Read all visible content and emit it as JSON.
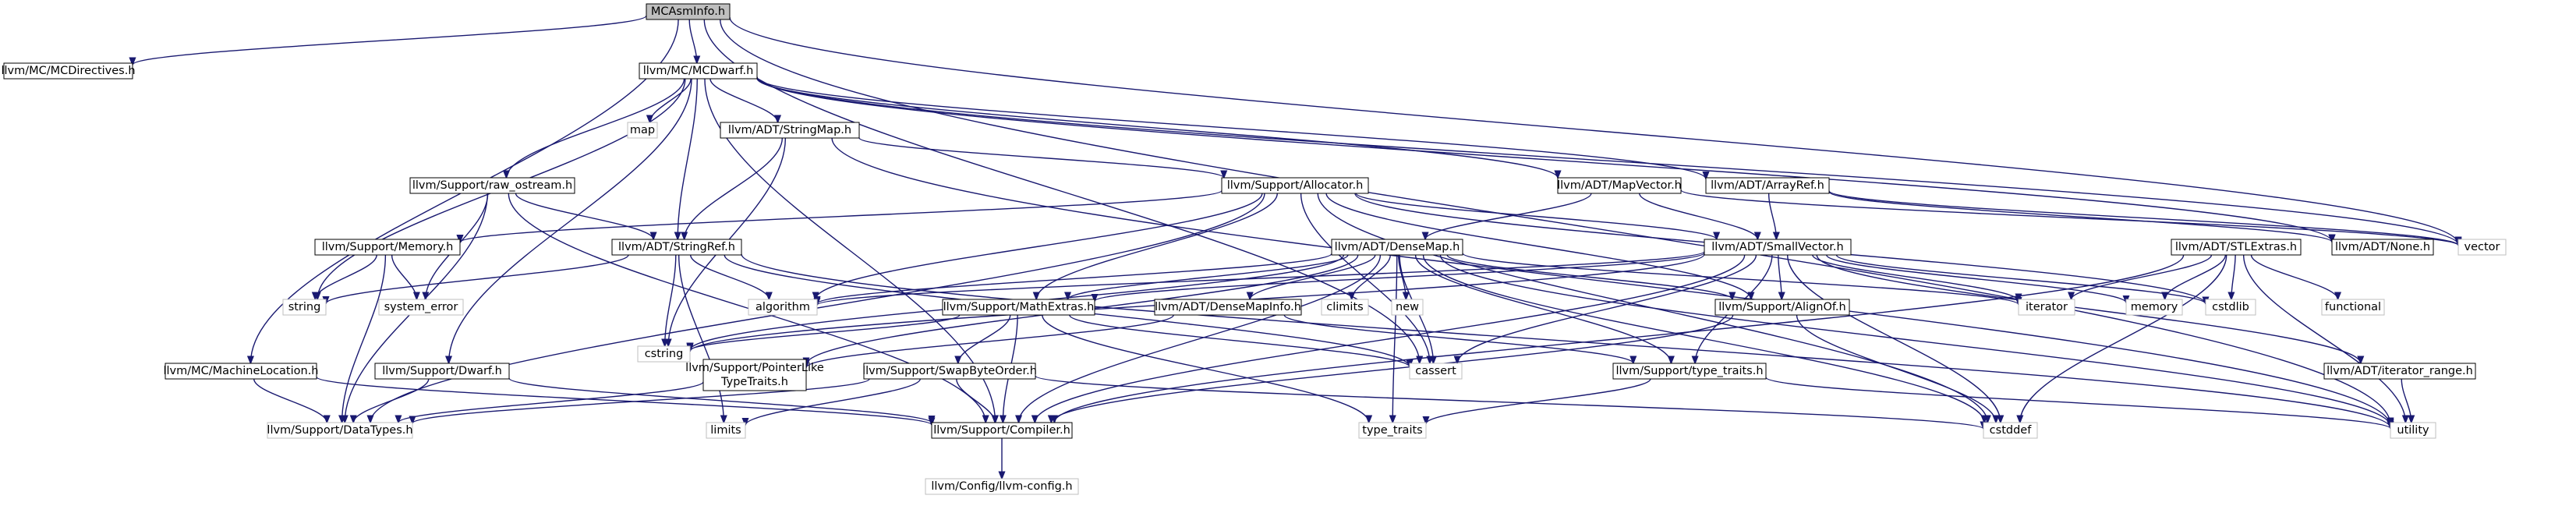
{
  "colors": {
    "edge": "#191970",
    "node_border": "#000000",
    "sys_border": "#bfbfbf",
    "root_fill": "#bfbfbf",
    "node_fill": "#ffffff",
    "text": "#000000"
  },
  "nodes": [
    {
      "id": "mcasminfo",
      "label": "MCAsmInfo.h",
      "kind": "root"
    },
    {
      "id": "mcdirectives",
      "label": "llvm/MC/MCDirectives.h",
      "kind": "normal"
    },
    {
      "id": "mcdwarf",
      "label": "llvm/MC/MCDwarf.h",
      "kind": "normal"
    },
    {
      "id": "map",
      "label": "map",
      "kind": "system"
    },
    {
      "id": "stringmap",
      "label": "llvm/ADT/StringMap.h",
      "kind": "normal"
    },
    {
      "id": "rawostream",
      "label": "llvm/Support/raw_ostream.h",
      "kind": "normal"
    },
    {
      "id": "allocator",
      "label": "llvm/Support/Allocator.h",
      "kind": "normal"
    },
    {
      "id": "mapvector",
      "label": "llvm/ADT/MapVector.h",
      "kind": "normal"
    },
    {
      "id": "arrayref",
      "label": "llvm/ADT/ArrayRef.h",
      "kind": "normal"
    },
    {
      "id": "memory",
      "label": "llvm/Support/Memory.h",
      "kind": "normal"
    },
    {
      "id": "stringref",
      "label": "llvm/ADT/StringRef.h",
      "kind": "normal"
    },
    {
      "id": "densemap",
      "label": "llvm/ADT/DenseMap.h",
      "kind": "normal"
    },
    {
      "id": "smallvector",
      "label": "llvm/ADT/SmallVector.h",
      "kind": "normal"
    },
    {
      "id": "stlextras",
      "label": "llvm/ADT/STLExtras.h",
      "kind": "normal"
    },
    {
      "id": "none",
      "label": "llvm/ADT/None.h",
      "kind": "normal"
    },
    {
      "id": "vector",
      "label": "vector",
      "kind": "system"
    },
    {
      "id": "string",
      "label": "string",
      "kind": "system"
    },
    {
      "id": "systemerror",
      "label": "system_error",
      "kind": "system"
    },
    {
      "id": "algorithm",
      "label": "algorithm",
      "kind": "system"
    },
    {
      "id": "cstring",
      "label": "cstring",
      "kind": "system"
    },
    {
      "id": "mathextras",
      "label": "llvm/Support/MathExtras.h",
      "kind": "normal"
    },
    {
      "id": "densemapinfo",
      "label": "llvm/ADT/DenseMapInfo.h",
      "kind": "normal"
    },
    {
      "id": "climits",
      "label": "climits",
      "kind": "system"
    },
    {
      "id": "new",
      "label": "new",
      "kind": "system"
    },
    {
      "id": "alignof",
      "label": "llvm/Support/AlignOf.h",
      "kind": "normal"
    },
    {
      "id": "iterator",
      "label": "iterator",
      "kind": "system"
    },
    {
      "id": "memorystd",
      "label": "memory",
      "kind": "system"
    },
    {
      "id": "cstdlib",
      "label": "cstdlib",
      "kind": "system"
    },
    {
      "id": "functional",
      "label": "functional",
      "kind": "system"
    },
    {
      "id": "machineloc",
      "label": "llvm/MC/MachineLocation.h",
      "kind": "normal"
    },
    {
      "id": "dwarf",
      "label": "llvm/Support/Dwarf.h",
      "kind": "normal"
    },
    {
      "id": "pointerlike",
      "label": "llvm/Support/PointerLike\nTypeTraits.h",
      "kind": "normal"
    },
    {
      "id": "swapbyteorder",
      "label": "llvm/Support/SwapByteOrder.h",
      "kind": "normal"
    },
    {
      "id": "cassert",
      "label": "cassert",
      "kind": "system"
    },
    {
      "id": "typetraitsh",
      "label": "llvm/Support/type_traits.h",
      "kind": "normal"
    },
    {
      "id": "iteratorrange",
      "label": "llvm/ADT/iterator_range.h",
      "kind": "normal"
    },
    {
      "id": "datatypes",
      "label": "llvm/Support/DataTypes.h",
      "kind": "system"
    },
    {
      "id": "limits",
      "label": "limits",
      "kind": "system"
    },
    {
      "id": "compiler",
      "label": "llvm/Support/Compiler.h",
      "kind": "normal"
    },
    {
      "id": "typetraits",
      "label": "type_traits",
      "kind": "system"
    },
    {
      "id": "cstddef",
      "label": "cstddef",
      "kind": "system"
    },
    {
      "id": "utility",
      "label": "utility",
      "kind": "system"
    },
    {
      "id": "llvmconfig",
      "label": "llvm/Config/llvm-config.h",
      "kind": "system"
    }
  ],
  "edges": [
    [
      "mcasminfo",
      "mcdirectives"
    ],
    [
      "mcasminfo",
      "mcdwarf"
    ],
    [
      "mcasminfo",
      "machineloc"
    ],
    [
      "mcasminfo",
      "cassert"
    ],
    [
      "mcasminfo",
      "vector"
    ],
    [
      "mcasminfo",
      "utility"
    ],
    [
      "mcdwarf",
      "map"
    ],
    [
      "mcdwarf",
      "stringmap"
    ],
    [
      "mcdwarf",
      "rawostream"
    ],
    [
      "mcdwarf",
      "stringref"
    ],
    [
      "mcdwarf",
      "mapvector"
    ],
    [
      "mcdwarf",
      "arrayref"
    ],
    [
      "mcdwarf",
      "none"
    ],
    [
      "mcdwarf",
      "vector"
    ],
    [
      "mcdwarf",
      "string"
    ],
    [
      "mcdwarf",
      "dwarf"
    ],
    [
      "mcdwarf",
      "compiler"
    ],
    [
      "stringmap",
      "allocator"
    ],
    [
      "stringmap",
      "stringref"
    ],
    [
      "stringmap",
      "cstring"
    ],
    [
      "stringmap",
      "utility"
    ],
    [
      "rawostream",
      "stringref"
    ],
    [
      "rawostream",
      "compiler"
    ],
    [
      "rawostream",
      "datatypes"
    ],
    [
      "rawostream",
      "systemerror"
    ],
    [
      "allocator",
      "memory"
    ],
    [
      "allocator",
      "smallvector"
    ],
    [
      "allocator",
      "alignof"
    ],
    [
      "allocator",
      "mathextras"
    ],
    [
      "allocator",
      "datatypes"
    ],
    [
      "allocator",
      "algorithm"
    ],
    [
      "allocator",
      "cassert"
    ],
    [
      "allocator",
      "cstddef"
    ],
    [
      "allocator",
      "cstdlib"
    ],
    [
      "mapvector",
      "densemap"
    ],
    [
      "mapvector",
      "smallvector"
    ],
    [
      "mapvector",
      "vector"
    ],
    [
      "arrayref",
      "none"
    ],
    [
      "arrayref",
      "smallvector"
    ],
    [
      "arrayref",
      "vector"
    ],
    [
      "memory",
      "datatypes"
    ],
    [
      "memory",
      "string"
    ],
    [
      "memory",
      "systemerror"
    ],
    [
      "stringref",
      "algorithm"
    ],
    [
      "stringref",
      "cstring"
    ],
    [
      "stringref",
      "string"
    ],
    [
      "stringref",
      "utility"
    ],
    [
      "stringref",
      "limits"
    ],
    [
      "stringref",
      "cassert"
    ],
    [
      "densemap",
      "densemapinfo"
    ],
    [
      "densemap",
      "alignof"
    ],
    [
      "densemap",
      "compiler"
    ],
    [
      "densemap",
      "mathextras"
    ],
    [
      "densemap",
      "pointerlike"
    ],
    [
      "densemap",
      "typetraitsh"
    ],
    [
      "densemap",
      "algorithm"
    ],
    [
      "densemap",
      "cassert"
    ],
    [
      "densemap",
      "climits"
    ],
    [
      "densemap",
      "cstddef"
    ],
    [
      "densemap",
      "cstring"
    ],
    [
      "densemap",
      "iterator"
    ],
    [
      "densemap",
      "new"
    ],
    [
      "densemap",
      "utility"
    ],
    [
      "densemap",
      "typetraits"
    ],
    [
      "smallvector",
      "iteratorrange"
    ],
    [
      "smallvector",
      "alignof"
    ],
    [
      "smallvector",
      "compiler"
    ],
    [
      "smallvector",
      "mathextras"
    ],
    [
      "smallvector",
      "typetraitsh"
    ],
    [
      "smallvector",
      "algorithm"
    ],
    [
      "smallvector",
      "cassert"
    ],
    [
      "smallvector",
      "cstddef"
    ],
    [
      "smallvector",
      "cstdlib"
    ],
    [
      "smallvector",
      "cstring"
    ],
    [
      "smallvector",
      "iterator"
    ],
    [
      "smallvector",
      "memorystd"
    ],
    [
      "stlextras",
      "compiler"
    ],
    [
      "stlextras",
      "cstddef"
    ],
    [
      "stlextras",
      "cstdlib"
    ],
    [
      "stlextras",
      "functional"
    ],
    [
      "stlextras",
      "iterator"
    ],
    [
      "stlextras",
      "memorystd"
    ],
    [
      "stlextras",
      "utility"
    ],
    [
      "mathextras",
      "compiler"
    ],
    [
      "mathextras",
      "swapbyteorder"
    ],
    [
      "mathextras",
      "cassert"
    ],
    [
      "mathextras",
      "cstring"
    ],
    [
      "mathextras",
      "typetraits"
    ],
    [
      "densemapinfo",
      "pointerlike"
    ],
    [
      "densemapinfo",
      "typetraitsh"
    ],
    [
      "alignof",
      "compiler"
    ],
    [
      "alignof",
      "cstddef"
    ],
    [
      "iteratorrange",
      "utility"
    ],
    [
      "machineloc",
      "datatypes"
    ],
    [
      "machineloc",
      "compiler"
    ],
    [
      "dwarf",
      "datatypes"
    ],
    [
      "dwarf",
      "compiler"
    ],
    [
      "pointerlike",
      "datatypes"
    ],
    [
      "swapbyteorder",
      "compiler"
    ],
    [
      "swapbyteorder",
      "datatypes"
    ],
    [
      "swapbyteorder",
      "cstddef"
    ],
    [
      "swapbyteorder",
      "limits"
    ],
    [
      "typetraitsh",
      "typetraits"
    ],
    [
      "typetraitsh",
      "utility"
    ],
    [
      "compiler",
      "llvmconfig"
    ]
  ]
}
